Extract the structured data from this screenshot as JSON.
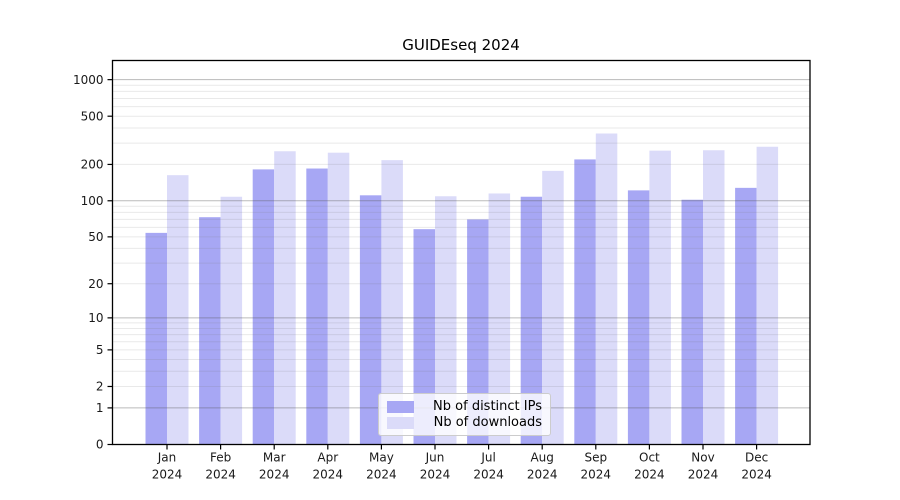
{
  "page": {
    "background": "#ffffff"
  },
  "chart_data": {
    "type": "bar",
    "title": "GUIDEseq 2024",
    "categories": [
      "Jan",
      "Feb",
      "Mar",
      "Apr",
      "May",
      "Jun",
      "Jul",
      "Aug",
      "Sep",
      "Oct",
      "Nov",
      "Dec"
    ],
    "category_year": "2024",
    "series": [
      {
        "name": "Nb of distinct IPs",
        "color": "#a7a7f4",
        "values": [
          54,
          73,
          182,
          185,
          111,
          58,
          70,
          108,
          220,
          122,
          102,
          128
        ]
      },
      {
        "name": "Nb of downloads",
        "color": "#dbdbf9",
        "values": [
          163,
          108,
          257,
          250,
          217,
          109,
          115,
          177,
          360,
          260,
          262,
          280
        ]
      }
    ],
    "yscale": "log1p",
    "yticks": [
      0,
      1,
      2,
      5,
      10,
      20,
      50,
      100,
      200,
      500,
      1000
    ],
    "ylim": [
      0,
      1414
    ],
    "grid": true,
    "legend_position": "lower-center",
    "axis_color": "#000000",
    "major_grid_values": [
      1,
      10,
      100,
      1000
    ]
  }
}
